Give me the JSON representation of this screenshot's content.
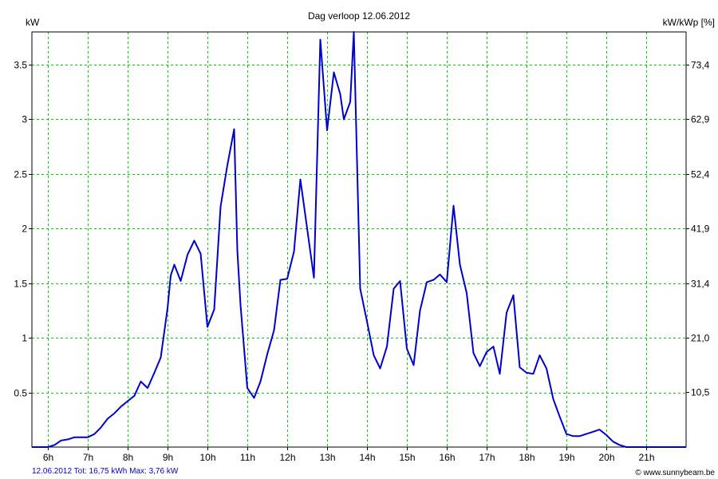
{
  "chart_data": {
    "type": "line",
    "title": "Dag  verloop 12.06.2012",
    "ylabel_left": "kW",
    "ylabel_right": "kW/kWp [%]",
    "xlim": [
      5.6,
      22.0
    ],
    "ylim": [
      0,
      3.8
    ],
    "x_ticks": [
      6,
      7,
      8,
      9,
      10,
      11,
      12,
      13,
      14,
      15,
      16,
      17,
      18,
      19,
      20,
      21
    ],
    "x_tick_labels": [
      "6h",
      "7h",
      "8h",
      "9h",
      "10h",
      "11h",
      "12h",
      "13h",
      "14h",
      "15h",
      "16h",
      "17h",
      "18h",
      "19h",
      "20h",
      "21h"
    ],
    "y_ticks_left": [
      0.5,
      1,
      1.5,
      2,
      2.5,
      3,
      3.5
    ],
    "y_tick_labels_left": [
      "0.5",
      "1",
      "1.5",
      "2",
      "2.5",
      "3",
      "3.5"
    ],
    "y_ticks_right": [
      10.5,
      21.0,
      31.4,
      41.9,
      52.4,
      62.9,
      73.4
    ],
    "y_tick_labels_right": [
      "10,5",
      "21,0",
      "31,4",
      "41,9",
      "52,4",
      "62,9",
      "73,4"
    ],
    "right_scale_factor": 20.96,
    "grid": true,
    "grid_color": "#00cc00",
    "line_color": "#0000cc",
    "series": [
      {
        "x": [
          5.6,
          6.0,
          6.17,
          6.33,
          6.5,
          6.67,
          6.83,
          7.0,
          7.17,
          7.33,
          7.5,
          7.67,
          7.83,
          8.0,
          8.17,
          8.33,
          8.5,
          8.67,
          8.83,
          9.0,
          9.08,
          9.17,
          9.33,
          9.5,
          9.67,
          9.83,
          10.0,
          10.17,
          10.33,
          10.5,
          10.67,
          10.75,
          10.83,
          11.0,
          11.17,
          11.33,
          11.5,
          11.67,
          11.83,
          12.0,
          12.17,
          12.33,
          12.5,
          12.67,
          12.83,
          13.0,
          13.17,
          13.33,
          13.42,
          13.58,
          13.67,
          13.83,
          14.0,
          14.17,
          14.33,
          14.5,
          14.67,
          14.83,
          15.0,
          15.17,
          15.33,
          15.5,
          15.67,
          15.83,
          16.0,
          16.17,
          16.33,
          16.5,
          16.67,
          16.83,
          17.0,
          17.17,
          17.33,
          17.5,
          17.67,
          17.83,
          18.0,
          18.17,
          18.33,
          18.5,
          18.67,
          18.83,
          19.0,
          19.17,
          19.33,
          19.5,
          19.67,
          19.83,
          20.0,
          20.17,
          20.33,
          20.5,
          20.67,
          20.83,
          21.0,
          21.17,
          21.33,
          21.5,
          21.67,
          22.0
        ],
        "y": [
          0.0,
          0.0,
          0.02,
          0.06,
          0.07,
          0.09,
          0.09,
          0.09,
          0.12,
          0.18,
          0.26,
          0.31,
          0.37,
          0.42,
          0.47,
          0.6,
          0.54,
          0.68,
          0.82,
          1.27,
          1.57,
          1.67,
          1.52,
          1.76,
          1.89,
          1.77,
          1.1,
          1.26,
          2.2,
          2.58,
          2.91,
          1.8,
          1.3,
          0.54,
          0.45,
          0.6,
          0.85,
          1.07,
          1.53,
          1.54,
          1.79,
          2.45,
          2.0,
          1.55,
          3.73,
          2.9,
          3.43,
          3.23,
          3.0,
          3.16,
          3.8,
          1.45,
          1.15,
          0.84,
          0.72,
          0.92,
          1.45,
          1.52,
          0.9,
          0.75,
          1.25,
          1.51,
          1.53,
          1.58,
          1.51,
          2.21,
          1.67,
          1.41,
          0.86,
          0.74,
          0.87,
          0.92,
          0.67,
          1.23,
          1.39,
          0.73,
          0.68,
          0.67,
          0.84,
          0.72,
          0.44,
          0.28,
          0.12,
          0.1,
          0.1,
          0.12,
          0.14,
          0.16,
          0.11,
          0.05,
          0.02,
          0.0,
          0.0,
          0.0,
          0.0,
          0.0,
          0.0,
          0.0,
          0.0,
          0.0
        ]
      }
    ]
  },
  "footer": {
    "summary": "12.06.2012 Tot: 16,75 kWh Max: 3,76 kW",
    "copyright": "© www.sunnybeam.be"
  }
}
